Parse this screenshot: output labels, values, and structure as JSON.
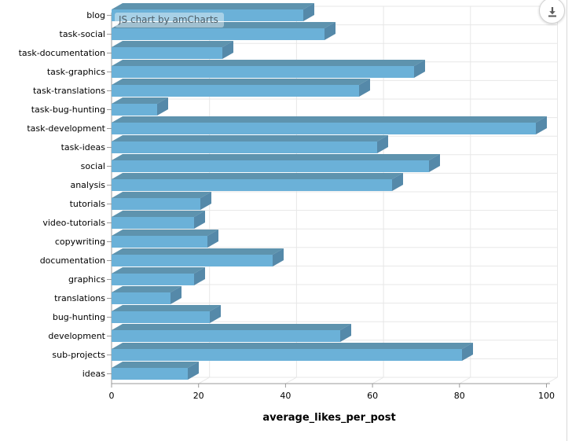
{
  "chart": {
    "watermark": "JS chart by amCharts",
    "xlabel": "average_likes_per_post"
  },
  "controls": {
    "download_icon": "download-arrow-icon"
  },
  "colors": {
    "bar_front": "#6BB1D8",
    "bar_top": "#5E93AE",
    "bar_side": "#5589A9",
    "grid": "#E7E7E7",
    "axis": "#999999",
    "label_text": "#000000",
    "watermark_text": "#4E5E68"
  },
  "chart_data": {
    "type": "bar",
    "orientation": "horizontal",
    "title": "",
    "xlabel": "average_likes_per_post",
    "ylabel": "",
    "xlim": [
      0,
      102
    ],
    "xticks": [
      0,
      20,
      40,
      60,
      80,
      100
    ],
    "grid": true,
    "style": "3d-depth",
    "legend": "none",
    "categories": [
      "blog",
      "task-social",
      "task-documentation",
      "task-graphics",
      "task-translations",
      "task-bug-hunting",
      "task-development",
      "task-ideas",
      "social",
      "analysis",
      "tutorials",
      "video-tutorials",
      "copywriting",
      "documentation",
      "graphics",
      "translations",
      "bug-hunting",
      "development",
      "sub-projects",
      "ideas"
    ],
    "values": [
      44,
      49,
      25.5,
      69.5,
      57,
      10.5,
      97.5,
      61,
      73,
      64.5,
      20.5,
      19,
      22,
      37,
      19,
      13.5,
      22.5,
      52.5,
      80.5,
      17.5
    ]
  }
}
